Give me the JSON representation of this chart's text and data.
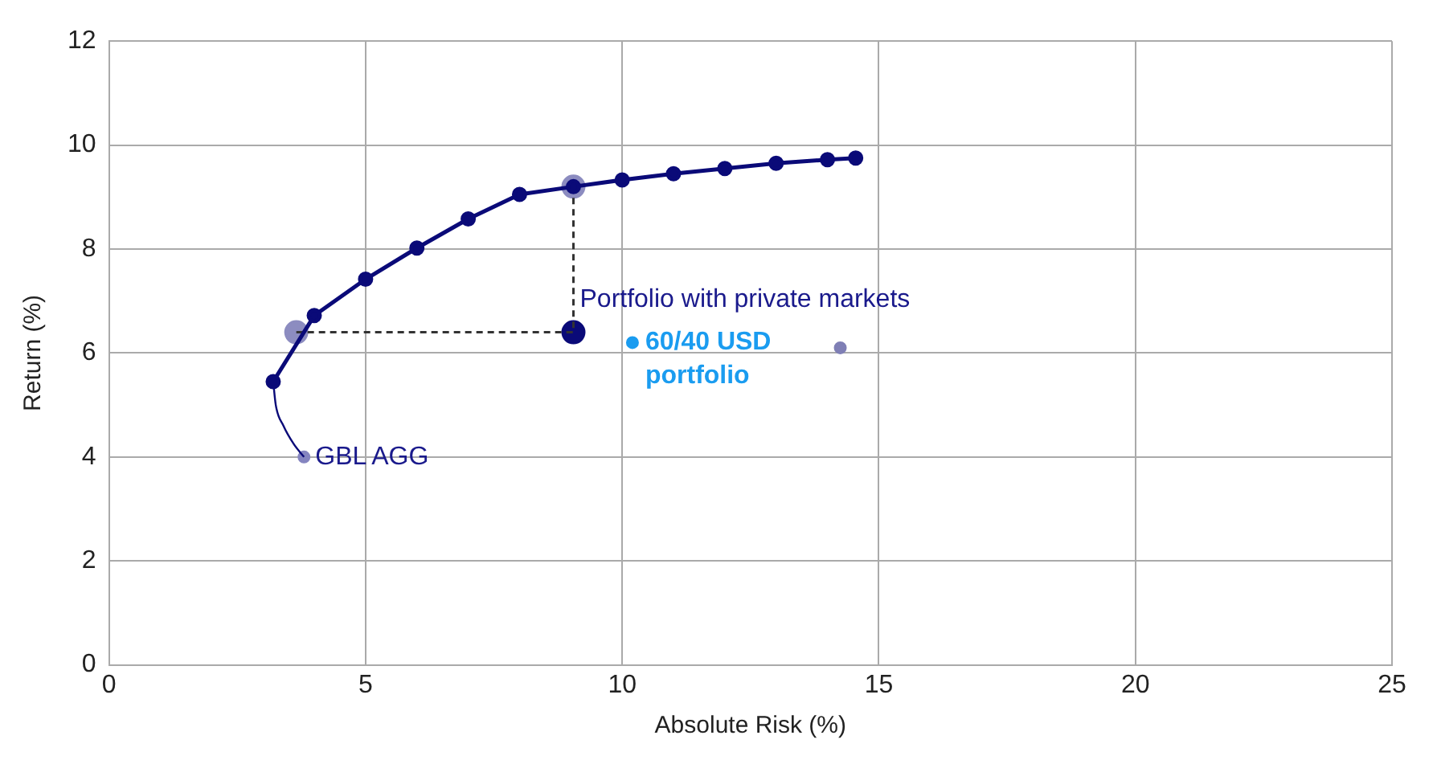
{
  "chart_data": {
    "type": "scatter",
    "xlabel": "Absolute Risk (%)",
    "ylabel": "Return (%)",
    "xlim": [
      0,
      25
    ],
    "xticks": [
      0,
      5,
      10,
      15,
      20,
      25
    ],
    "ylim": [
      0,
      12
    ],
    "yticks": [
      0,
      2,
      4,
      6,
      8,
      10,
      12
    ],
    "grid": true,
    "legend": false,
    "series": [
      {
        "type": "line",
        "color": "#0a0a78",
        "marker": "circle",
        "x": [
          3.2,
          4,
          5,
          6,
          7,
          8,
          9.05,
          10,
          11,
          12,
          13,
          14,
          14.55
        ],
        "values": [
          5.45,
          6.72,
          7.42,
          8.02,
          8.58,
          9.05,
          9.2,
          9.33,
          9.45,
          9.55,
          9.65,
          9.72,
          9.75
        ]
      },
      {
        "type": "line",
        "color": "#0a0a78",
        "marker": "none",
        "x": [
          3.2,
          3.25,
          3.4,
          3.6,
          3.8
        ],
        "values": [
          5.45,
          5.0,
          4.6,
          4.25,
          4.0
        ]
      },
      {
        "type": "line",
        "color": "#333333",
        "marker": "none",
        "line_style": "dashed",
        "x": [
          3.65,
          9.05,
          9.05
        ],
        "values": [
          6.4,
          6.4,
          9.2
        ]
      },
      {
        "color": "#8c8cc0",
        "marker": "circle",
        "x": [
          3.65,
          9.05
        ],
        "values": [
          6.4,
          9.2
        ]
      },
      {
        "name": "Portfolio with private markets",
        "color": "#0a0a78",
        "marker": "circle",
        "x": [
          9.05
        ],
        "values": [
          6.4
        ]
      },
      {
        "name": "60/40 USD portfolio",
        "color": "#1a9cf0",
        "marker": "circle",
        "x": [
          10.2
        ],
        "values": [
          6.2
        ]
      },
      {
        "color": "#7f7fb5",
        "marker": "circle",
        "x": [
          14.25
        ],
        "values": [
          6.1
        ]
      },
      {
        "name": "GBL AGG",
        "color": "#8585c0",
        "marker": "circle",
        "x": [
          3.8
        ],
        "values": [
          4.0
        ]
      }
    ]
  }
}
